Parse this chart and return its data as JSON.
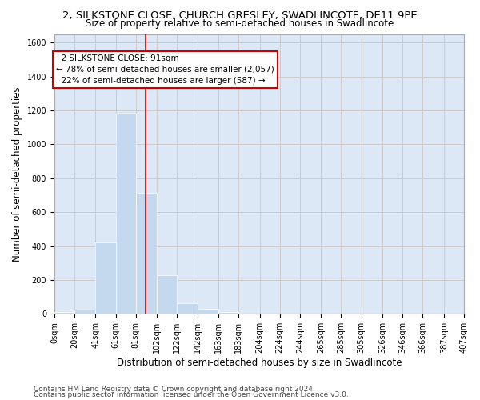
{
  "title_line1": "2, SILKSTONE CLOSE, CHURCH GRESLEY, SWADLINCOTE, DE11 9PE",
  "title_line2": "Size of property relative to semi-detached houses in Swadlincote",
  "xlabel": "Distribution of semi-detached houses by size in Swadlincote",
  "ylabel": "Number of semi-detached properties",
  "footer_line1": "Contains HM Land Registry data © Crown copyright and database right 2024.",
  "footer_line2": "Contains public sector information licensed under the Open Government Licence v3.0.",
  "bar_edges": [
    0,
    20,
    41,
    61,
    81,
    102,
    122,
    142,
    163,
    183,
    204,
    224,
    244,
    265,
    285,
    305,
    326,
    346,
    366,
    387,
    407
  ],
  "bar_values": [
    10,
    25,
    420,
    1180,
    715,
    230,
    65,
    30,
    10,
    0,
    0,
    0,
    0,
    0,
    0,
    0,
    0,
    0,
    0,
    0
  ],
  "tick_labels": [
    "0sqm",
    "20sqm",
    "41sqm",
    "61sqm",
    "81sqm",
    "102sqm",
    "122sqm",
    "142sqm",
    "163sqm",
    "183sqm",
    "204sqm",
    "224sqm",
    "244sqm",
    "265sqm",
    "285sqm",
    "305sqm",
    "326sqm",
    "346sqm",
    "366sqm",
    "387sqm",
    "407sqm"
  ],
  "property_size": 91,
  "property_label": "2 SILKSTONE CLOSE: 91sqm",
  "pct_smaller": 78,
  "pct_smaller_count": 2057,
  "pct_larger": 22,
  "pct_larger_count": 587,
  "vline_color": "#cc0000",
  "bar_facecolor": "#c5d9ee",
  "bar_edgecolor": "#c5d9ee",
  "annotation_box_edgecolor": "#cc0000",
  "ylim": [
    0,
    1650
  ],
  "yticks": [
    0,
    200,
    400,
    600,
    800,
    1000,
    1200,
    1400,
    1600
  ],
  "grid_color": "#cccccc",
  "bg_color": "#dce8f5",
  "title_fontsize": 9.5,
  "subtitle_fontsize": 8.5,
  "axis_label_fontsize": 8.5,
  "tick_fontsize": 7,
  "annotation_fontsize": 7.5,
  "footer_fontsize": 6.5
}
